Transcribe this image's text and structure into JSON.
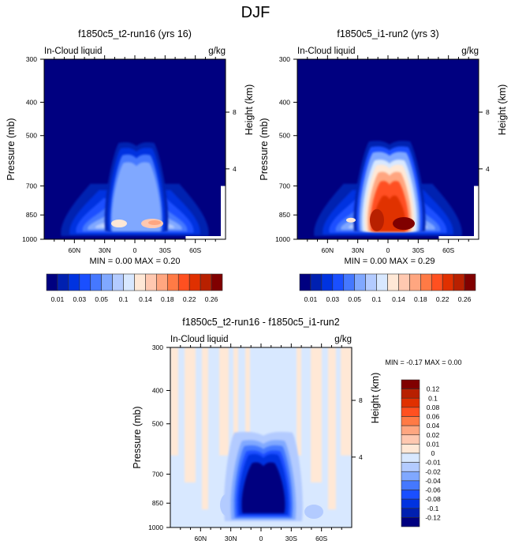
{
  "main_title": "DJF",
  "palette": [
    "#000080",
    "#0020b0",
    "#0033e0",
    "#1a4fff",
    "#4578ff",
    "#80a8ff",
    "#b3cbff",
    "#d8e8ff",
    "#ffe8d6",
    "#ffc8b0",
    "#ffa680",
    "#ff7a45",
    "#ff5020",
    "#e03000",
    "#b82000",
    "#800000"
  ],
  "chart_data": [
    {
      "type": "heatmap",
      "title": "f1850c5_t2-run16 (yrs 16)",
      "left_label": "In-Cloud liquid",
      "right_label": "g/kg",
      "ylabel": "Pressure (mb)",
      "ylabel_right": "Height (km)",
      "yticks": [
        "300",
        "400",
        "500",
        "700",
        "850",
        "1000"
      ],
      "yticks_right": [
        "8",
        "4"
      ],
      "xticks": [
        "60N",
        "30N",
        "0",
        "30S",
        "60S"
      ],
      "stats": "MIN =   0.00  MAX =   0.20",
      "min": 0.0,
      "max": 0.2,
      "colorbar_labels": [
        "0.01",
        "0.03",
        "0.05",
        "0.1",
        "0.14",
        "0.18",
        "0.22",
        "0.26"
      ],
      "colorbar_levels": [
        0.01,
        0.02,
        0.03,
        0.04,
        0.05,
        0.07,
        0.1,
        0.12,
        0.14,
        0.16,
        0.18,
        0.2,
        0.22,
        0.24,
        0.26
      ]
    },
    {
      "type": "heatmap",
      "title": "f1850c5_i1-run2 (yrs 3)",
      "left_label": "In-Cloud liquid",
      "right_label": "g/kg",
      "ylabel": "Pressure (mb)",
      "ylabel_right": "Height (km)",
      "yticks": [
        "300",
        "400",
        "500",
        "700",
        "850",
        "1000"
      ],
      "yticks_right": [
        "8",
        "4"
      ],
      "xticks": [
        "60N",
        "30N",
        "0",
        "30S",
        "60S"
      ],
      "stats": "MIN =   0.00  MAX =   0.29",
      "min": 0.0,
      "max": 0.29,
      "colorbar_labels": [
        "0.01",
        "0.03",
        "0.05",
        "0.1",
        "0.14",
        "0.18",
        "0.22",
        "0.26"
      ],
      "colorbar_levels": [
        0.01,
        0.02,
        0.03,
        0.04,
        0.05,
        0.07,
        0.1,
        0.12,
        0.14,
        0.16,
        0.18,
        0.2,
        0.22,
        0.24,
        0.26
      ]
    },
    {
      "type": "heatmap",
      "title": "f1850c5_t2-run16 - f1850c5_i1-run2",
      "left_label": "In-Cloud liquid",
      "right_label": "g/kg",
      "ylabel": "Pressure (mb)",
      "ylabel_right": "Height (km)",
      "yticks": [
        "300",
        "400",
        "500",
        "700",
        "850",
        "1000"
      ],
      "yticks_right": [
        "8",
        "4"
      ],
      "xticks": [
        "60N",
        "30N",
        "0",
        "30S",
        "60S"
      ],
      "stats": "MIN =  -0.17  MAX =   0.00",
      "min": -0.17,
      "max": 0.0,
      "colorbar_labels": [
        "0.12",
        "0.1",
        "0.08",
        "0.06",
        "0.04",
        "0.02",
        "0.01",
        "0",
        "-0.01",
        "-0.02",
        "-0.04",
        "-0.06",
        "-0.08",
        "-0.1",
        "-0.12"
      ]
    }
  ]
}
